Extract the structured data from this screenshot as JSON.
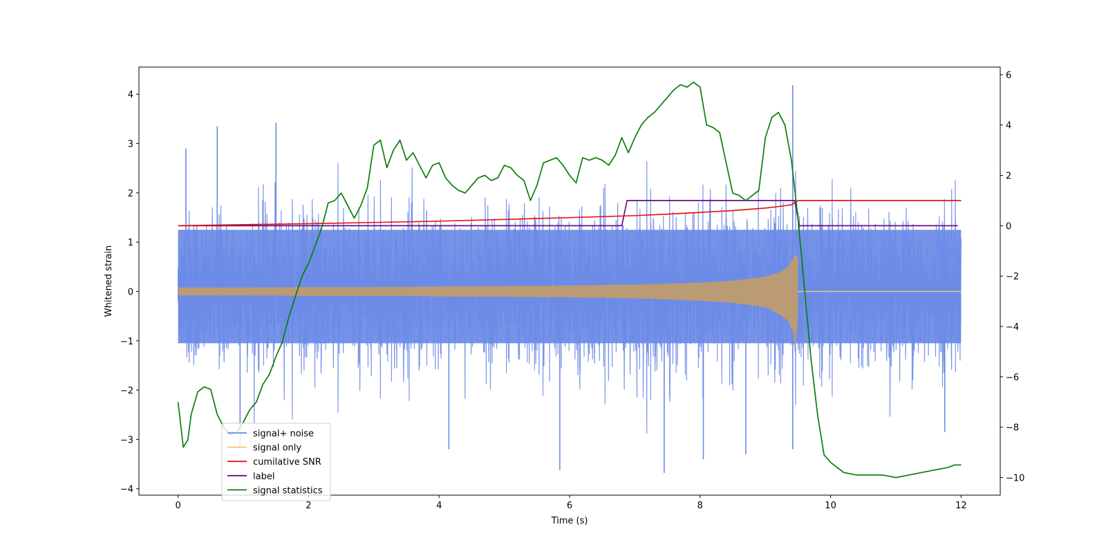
{
  "chart_data": {
    "type": "line",
    "title": "",
    "xlabel": "Time (s)",
    "ylabel": "Whitened strain",
    "y2label": "",
    "xlim": [
      -0.6,
      12.6
    ],
    "ylim": [
      -4.13,
      4.55
    ],
    "y2lim": [
      -10.7,
      6.3
    ],
    "x_ticks": [
      0,
      2,
      4,
      6,
      8,
      10,
      12
    ],
    "y_ticks": [
      -4,
      -3,
      -2,
      -1,
      0,
      1,
      2,
      3,
      4
    ],
    "y2_ticks": [
      -10,
      -8,
      -6,
      -4,
      -2,
      0,
      2,
      4,
      6
    ],
    "x_tick_labels": [
      "0",
      "2",
      "4",
      "6",
      "8",
      "10",
      "12"
    ],
    "y_tick_labels": [
      "−4",
      "−3",
      "−2",
      "−1",
      "0",
      "1",
      "2",
      "3",
      "4"
    ],
    "y2_tick_labels": [
      "−10",
      "−8",
      "−6",
      "−4",
      "−2",
      "0",
      "2",
      "4",
      "6"
    ],
    "legend_position": "lower-left",
    "grid": false,
    "series": [
      {
        "name": "signal+ noise",
        "color": "#6a8ae6",
        "axis": "left",
        "kind": "noise_band",
        "x_range": [
          0,
          12
        ],
        "typical_range": [
          -1.6,
          1.9
        ],
        "extreme_points": [
          [
            0.6,
            3.35
          ],
          [
            1.5,
            3.42
          ],
          [
            0.12,
            2.9
          ],
          [
            0.95,
            -3.15
          ],
          [
            4.15,
            -3.2
          ],
          [
            5.85,
            -3.62
          ],
          [
            7.45,
            -3.68
          ],
          [
            8.05,
            -3.4
          ],
          [
            8.7,
            -3.3
          ],
          [
            9.42,
            4.18
          ],
          [
            9.42,
            -3.2
          ],
          [
            11.75,
            -2.85
          ]
        ]
      },
      {
        "name": "signal only",
        "color": "#f4c071",
        "axis": "left",
        "kind": "chirp",
        "envelope": {
          "x": [
            0,
            1,
            2,
            3,
            4,
            5,
            6,
            7,
            7.5,
            8,
            8.5,
            9,
            9.2,
            9.35,
            9.42,
            9.46,
            9.5
          ],
          "upper": [
            0.08,
            0.08,
            0.09,
            0.09,
            0.1,
            0.11,
            0.12,
            0.14,
            0.16,
            0.18,
            0.22,
            0.3,
            0.38,
            0.5,
            0.65,
            0.75,
            0.7
          ],
          "lower": [
            -0.08,
            -0.08,
            -0.09,
            -0.09,
            -0.1,
            -0.11,
            -0.12,
            -0.14,
            -0.16,
            -0.19,
            -0.23,
            -0.32,
            -0.45,
            -0.6,
            -0.8,
            -1.15,
            -0.5
          ]
        }
      },
      {
        "name": "cumilative SNR",
        "color": "#e8141c",
        "axis": "right",
        "x": [
          0,
          1,
          2,
          3,
          4,
          5,
          6,
          7,
          7.5,
          8,
          8.5,
          9,
          9.2,
          9.4,
          9.5,
          12
        ],
        "values": [
          0,
          0.04,
          0.08,
          0.13,
          0.18,
          0.25,
          0.32,
          0.4,
          0.46,
          0.53,
          0.6,
          0.7,
          0.76,
          0.83,
          1.0,
          1.0
        ]
      },
      {
        "name": "label",
        "color": "#6a0d83",
        "axis": "right",
        "x": [
          0,
          6.8,
          6.88,
          9.45,
          9.52,
          11.95
        ],
        "values": [
          0,
          0,
          1,
          1,
          0,
          0
        ]
      },
      {
        "name": "signal statistics",
        "color": "#0a7d0a",
        "axis": "right",
        "x": [
          0,
          0.08,
          0.15,
          0.2,
          0.3,
          0.4,
          0.5,
          0.6,
          0.7,
          0.8,
          0.9,
          1.0,
          1.1,
          1.2,
          1.3,
          1.4,
          1.5,
          1.6,
          1.7,
          1.8,
          1.9,
          2.0,
          2.1,
          2.2,
          2.3,
          2.4,
          2.5,
          2.6,
          2.7,
          2.8,
          2.9,
          3.0,
          3.1,
          3.2,
          3.3,
          3.4,
          3.5,
          3.6,
          3.7,
          3.8,
          3.9,
          4.0,
          4.1,
          4.2,
          4.3,
          4.4,
          4.5,
          4.6,
          4.7,
          4.8,
          4.9,
          5.0,
          5.1,
          5.2,
          5.3,
          5.4,
          5.5,
          5.6,
          5.7,
          5.8,
          5.9,
          6.0,
          6.1,
          6.2,
          6.3,
          6.4,
          6.5,
          6.6,
          6.7,
          6.8,
          6.9,
          7.0,
          7.1,
          7.2,
          7.3,
          7.4,
          7.5,
          7.6,
          7.7,
          7.8,
          7.9,
          8.0,
          8.1,
          8.2,
          8.3,
          8.4,
          8.5,
          8.6,
          8.7,
          8.8,
          8.9,
          9.0,
          9.1,
          9.2,
          9.3,
          9.4,
          9.5,
          9.6,
          9.7,
          9.8,
          9.9,
          10.0,
          10.2,
          10.4,
          10.6,
          10.8,
          11.0,
          11.2,
          11.4,
          11.6,
          11.8,
          11.9,
          12.0
        ],
        "values": [
          -7.0,
          -8.8,
          -8.5,
          -7.5,
          -6.6,
          -6.4,
          -6.5,
          -7.5,
          -8.0,
          -8.3,
          -8.2,
          -7.8,
          -7.3,
          -7.0,
          -6.3,
          -5.9,
          -5.2,
          -4.6,
          -3.6,
          -2.8,
          -2.0,
          -1.5,
          -0.8,
          -0.1,
          0.9,
          1.0,
          1.3,
          0.8,
          0.3,
          0.8,
          1.5,
          3.2,
          3.4,
          2.3,
          3.0,
          3.4,
          2.6,
          2.9,
          2.4,
          1.9,
          2.4,
          2.5,
          1.9,
          1.6,
          1.4,
          1.3,
          1.6,
          1.9,
          2.0,
          1.8,
          1.9,
          2.4,
          2.3,
          2.0,
          1.8,
          1.0,
          1.6,
          2.5,
          2.6,
          2.7,
          2.4,
          2.0,
          1.7,
          2.7,
          2.6,
          2.7,
          2.6,
          2.4,
          2.8,
          3.5,
          2.9,
          3.5,
          4.0,
          4.3,
          4.5,
          4.8,
          5.1,
          5.4,
          5.6,
          5.5,
          5.7,
          5.5,
          4.0,
          3.9,
          3.7,
          2.5,
          1.3,
          1.2,
          1.0,
          1.2,
          1.4,
          3.5,
          4.3,
          4.5,
          4.0,
          2.6,
          0.3,
          -2.5,
          -5.3,
          -7.5,
          -9.1,
          -9.4,
          -9.8,
          -9.9,
          -9.9,
          -9.9,
          -10.0,
          -9.9,
          -9.8,
          -9.7,
          -9.6,
          -9.5,
          -9.5
        ]
      }
    ]
  }
}
